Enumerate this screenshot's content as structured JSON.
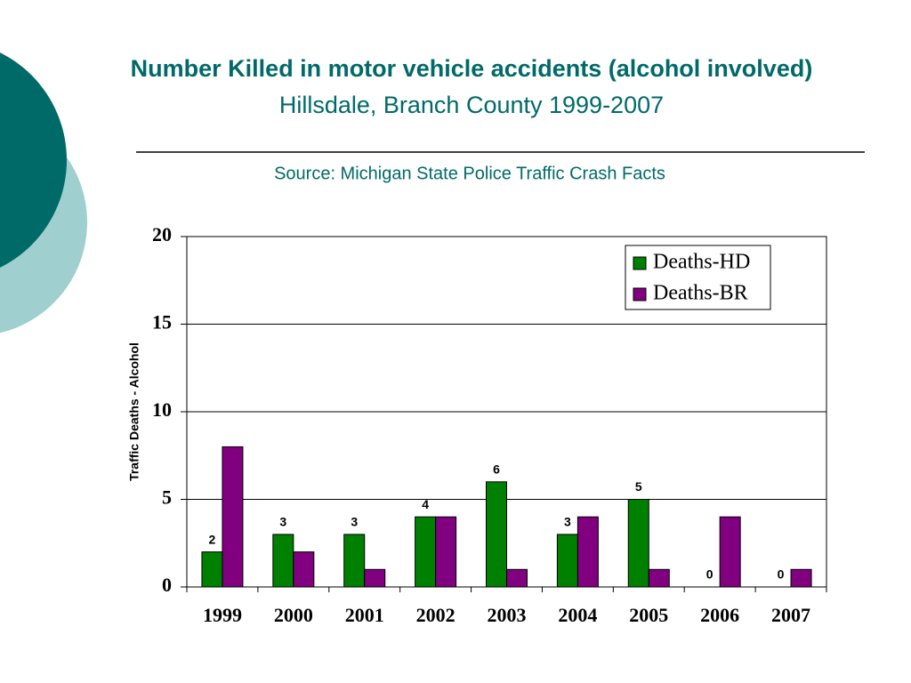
{
  "chart_data": {
    "type": "bar",
    "title": "Number Killed in motor vehicle accidents (alcohol involved)",
    "subtitle": "Hillsdale, Branch County 1999-2007",
    "source": "Source: Michigan State Police Traffic Crash Facts",
    "ylabel": "Traffic Deaths - Alcohol",
    "categories": [
      "1999",
      "2000",
      "2001",
      "2002",
      "2003",
      "2004",
      "2005",
      "2006",
      "2007"
    ],
    "series": [
      {
        "name": "Deaths-HD",
        "color": "#008000",
        "values": [
          2,
          3,
          3,
          4,
          6,
          3,
          5,
          0,
          0
        ],
        "data_labels": true
      },
      {
        "name": "Deaths-BR",
        "color": "#800080",
        "values": [
          8,
          2,
          1,
          4,
          1,
          4,
          1,
          4,
          1
        ],
        "data_labels": false
      }
    ],
    "ylim": [
      0,
      20
    ],
    "yticks": [
      0,
      5,
      10,
      15,
      20
    ],
    "grid": true,
    "legend": "upper right"
  }
}
